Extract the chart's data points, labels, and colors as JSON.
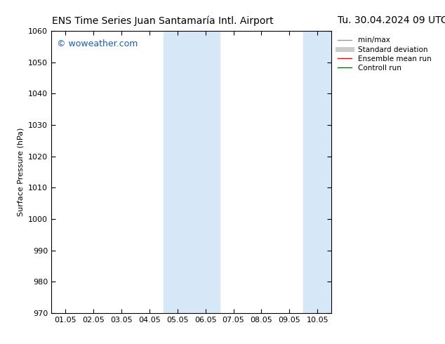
{
  "title_left": "ENS Time Series Juan Santamaría Intl. Airport",
  "title_right": "Tu. 30.04.2024 09 UTC",
  "ylabel": "Surface Pressure (hPa)",
  "ylim": [
    970,
    1060
  ],
  "yticks": [
    970,
    980,
    990,
    1000,
    1010,
    1020,
    1030,
    1040,
    1050,
    1060
  ],
  "xtick_labels": [
    "01.05",
    "02.05",
    "03.05",
    "04.05",
    "05.05",
    "06.05",
    "07.05",
    "08.05",
    "09.05",
    "10.05"
  ],
  "xtick_positions": [
    0,
    1,
    2,
    3,
    4,
    5,
    6,
    7,
    8,
    9
  ],
  "xlim": [
    -0.5,
    9.5
  ],
  "shade_bands": [
    {
      "xmin": 3.5,
      "xmax": 4.5
    },
    {
      "xmin": 4.5,
      "xmax": 5.5
    },
    {
      "xmin": 8.5,
      "xmax": 9.5
    }
  ],
  "shade_color": "#d6e8f7",
  "background_color": "#ffffff",
  "watermark": "© woweather.com",
  "watermark_color": "#1a5cb0",
  "legend_entries": [
    {
      "label": "min/max",
      "color": "#999999",
      "lw": 1.0,
      "ls": "-"
    },
    {
      "label": "Standard deviation",
      "color": "#cccccc",
      "lw": 5,
      "ls": "-"
    },
    {
      "label": "Ensemble mean run",
      "color": "#ff0000",
      "lw": 1.0,
      "ls": "-"
    },
    {
      "label": "Controll run",
      "color": "#007700",
      "lw": 1.0,
      "ls": "-"
    }
  ],
  "title_fontsize": 10,
  "axis_label_fontsize": 8,
  "tick_fontsize": 8,
  "watermark_fontsize": 9,
  "legend_fontsize": 7.5
}
